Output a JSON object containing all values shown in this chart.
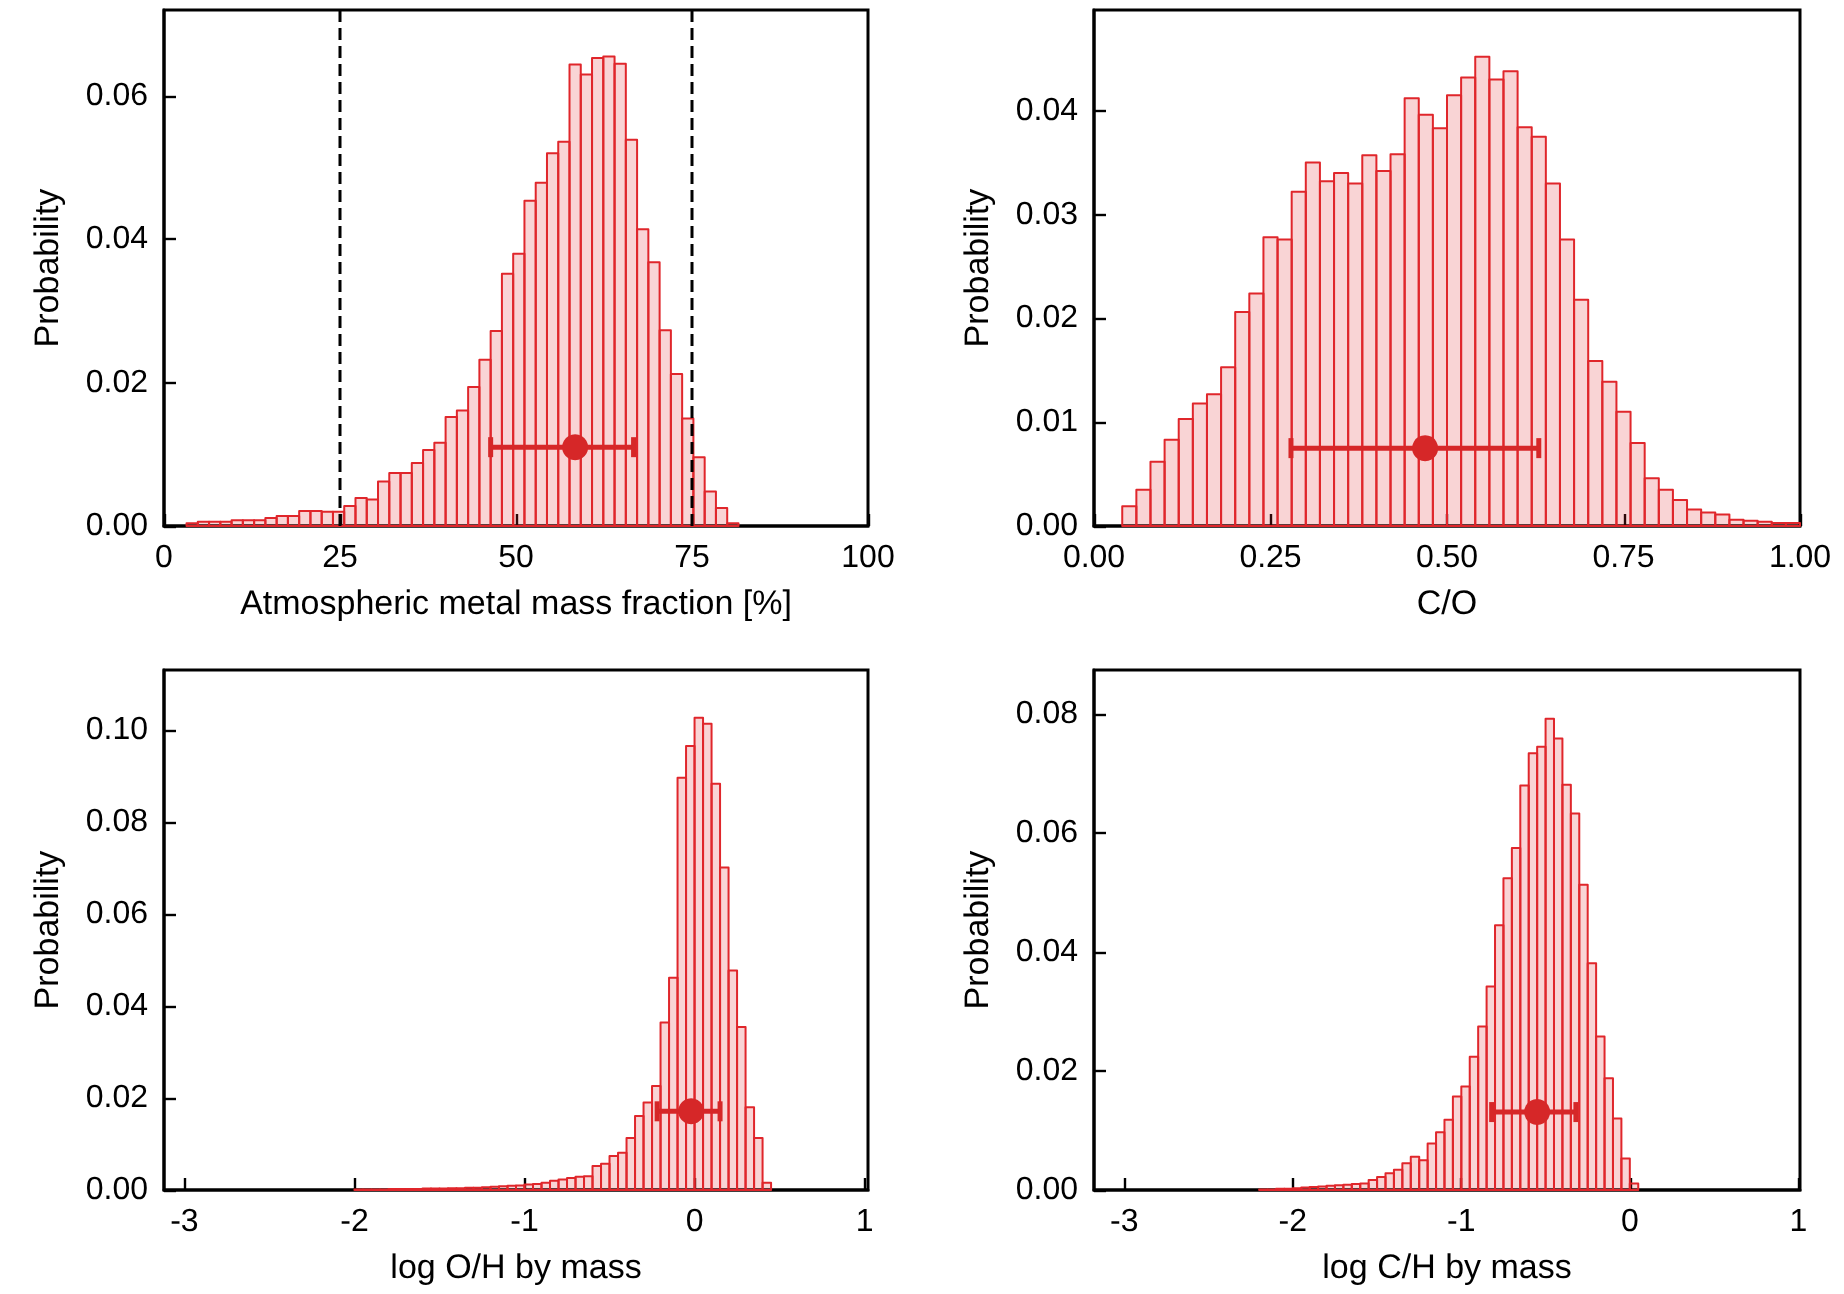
{
  "chart_data": [
    {
      "type": "histogram",
      "xlabel": "Atmospheric metal mass fraction [%]",
      "ylabel": "Probability",
      "xlim": [
        0,
        100
      ],
      "xticks": [
        0,
        25,
        50,
        75,
        100
      ],
      "ylim": [
        0,
        0.072
      ],
      "yticks": [
        {
          "value": 0,
          "label": "0.00"
        },
        {
          "value": 0.02,
          "label": "0.02"
        },
        {
          "value": 0.04,
          "label": "0.04"
        },
        {
          "value": 0.06,
          "label": "0.06"
        }
      ],
      "marker": "circle",
      "ref_lines": [
        {
          "axis": "x",
          "value": 25,
          "color": "#000000",
          "line_style": "dashed"
        },
        {
          "axis": "x",
          "value": 75,
          "color": "#000000",
          "line_style": "dashed"
        }
      ],
      "series": [
        {
          "type": "histogram",
          "color": "#e0262b",
          "bins": [
            3.2,
            4.8,
            6.4,
            8.0,
            9.6,
            11.2,
            12.8,
            14.4,
            16.0,
            17.6,
            19.2,
            20.8,
            22.4,
            24.0,
            25.6,
            27.2,
            28.8,
            30.4,
            32.0,
            33.6,
            35.2,
            36.8,
            38.4,
            40.0,
            41.6,
            43.2,
            44.8,
            46.4,
            48.0,
            49.6,
            51.2,
            52.8,
            54.4,
            56.0,
            57.6,
            59.2,
            60.8,
            62.4,
            64.0,
            65.6,
            67.2,
            68.8,
            70.4,
            72.0,
            73.6,
            75.2,
            76.8,
            78.4,
            80.0,
            81.6
          ],
          "values": [
            0.0004,
            0.0006,
            0.0006,
            0.0006,
            0.0008,
            0.0008,
            0.0008,
            0.0011,
            0.0014,
            0.0014,
            0.0021,
            0.0021,
            0.002,
            0.002,
            0.0028,
            0.0039,
            0.0037,
            0.0062,
            0.0074,
            0.0074,
            0.0088,
            0.0106,
            0.0116,
            0.0152,
            0.0161,
            0.0194,
            0.0232,
            0.0272,
            0.0352,
            0.038,
            0.0454,
            0.0479,
            0.052,
            0.0536,
            0.0644,
            0.063,
            0.0653,
            0.0655,
            0.0645,
            0.0539,
            0.0414,
            0.0368,
            0.0273,
            0.0212,
            0.015,
            0.0096,
            0.0048,
            0.0025,
            0.0004
          ]
        },
        {
          "type": "scatter",
          "color": "#d62728",
          "x": [
            58.4
          ],
          "values": [
            0.011
          ],
          "xerrors": [
            [
              46.4,
              66.7
            ]
          ]
        }
      ]
    },
    {
      "type": "histogram",
      "xlabel": "C/O",
      "ylabel": "Probability",
      "xlim": [
        0,
        1
      ],
      "xticks": [
        {
          "value": 0,
          "label": "0.00"
        },
        {
          "value": 0.25,
          "label": "0.25"
        },
        {
          "value": 0.5,
          "label": "0.50"
        },
        {
          "value": 0.75,
          "label": "0.75"
        },
        {
          "value": 1,
          "label": "1.00"
        }
      ],
      "ylim": [
        0,
        0.0497
      ],
      "yticks": [
        {
          "value": 0,
          "label": "0.00"
        },
        {
          "value": 0.01,
          "label": "0.01"
        },
        {
          "value": 0.02,
          "label": "0.02"
        },
        {
          "value": 0.03,
          "label": "0.03"
        },
        {
          "value": 0.04,
          "label": "0.04"
        }
      ],
      "marker": "circle",
      "series": [
        {
          "type": "histogram",
          "color": "#e0262b",
          "bins": [
            0.04,
            0.06,
            0.08,
            0.1,
            0.12,
            0.14,
            0.16,
            0.18,
            0.2,
            0.22,
            0.24,
            0.26,
            0.28,
            0.3,
            0.32,
            0.34,
            0.36,
            0.38,
            0.4,
            0.42,
            0.44,
            0.46,
            0.48,
            0.5,
            0.52,
            0.54,
            0.56,
            0.58,
            0.6,
            0.62,
            0.64,
            0.66,
            0.68,
            0.7,
            0.72,
            0.74,
            0.76,
            0.78,
            0.8,
            0.82,
            0.84,
            0.86,
            0.88,
            0.9,
            0.92,
            0.94,
            0.96,
            0.98,
            1.0
          ],
          "values": [
            0.0019,
            0.0035,
            0.0062,
            0.0083,
            0.0103,
            0.0118,
            0.0127,
            0.0153,
            0.0206,
            0.0224,
            0.0278,
            0.0276,
            0.0322,
            0.035,
            0.0332,
            0.034,
            0.033,
            0.0357,
            0.0342,
            0.0358,
            0.0412,
            0.0396,
            0.0383,
            0.0415,
            0.0432,
            0.0452,
            0.043,
            0.0438,
            0.0384,
            0.0375,
            0.033,
            0.0276,
            0.0218,
            0.0159,
            0.0139,
            0.011,
            0.008,
            0.0046,
            0.0035,
            0.0025,
            0.0016,
            0.0013,
            0.0011,
            0.0006,
            0.0005,
            0.0004,
            0.0003,
            0.0003
          ]
        },
        {
          "type": "scatter",
          "color": "#d62728",
          "x": [
            0.469
          ],
          "values": [
            0.0075
          ],
          "xerrors": [
            [
              0.279,
              0.63
            ]
          ]
        }
      ]
    },
    {
      "type": "histogram",
      "xlabel": "log O/H by mass",
      "ylabel": "Probability",
      "xlim": [
        -3.12,
        1.02
      ],
      "xticks": [
        -3,
        -2,
        -1,
        0,
        1
      ],
      "ylim": [
        0,
        0.113
      ],
      "yticks": [
        {
          "value": 0,
          "label": "0.00"
        },
        {
          "value": 0.02,
          "label": "0.02"
        },
        {
          "value": 0.04,
          "label": "0.04"
        },
        {
          "value": 0.06,
          "label": "0.06"
        },
        {
          "value": 0.08,
          "label": "0.08"
        },
        {
          "value": 0.1,
          "label": "0.10"
        }
      ],
      "marker": "circle",
      "series": [
        {
          "type": "histogram",
          "color": "#e0262b",
          "bins": [
            -2.0,
            -1.95,
            -1.9,
            -1.85,
            -1.8,
            -1.75,
            -1.7,
            -1.65,
            -1.6,
            -1.55,
            -1.5,
            -1.45,
            -1.4,
            -1.35,
            -1.3,
            -1.25,
            -1.2,
            -1.15,
            -1.1,
            -1.05,
            -1.0,
            -0.95,
            -0.9,
            -0.85,
            -0.8,
            -0.75,
            -0.7,
            -0.65,
            -0.6,
            -0.55,
            -0.5,
            -0.45,
            -0.4,
            -0.35,
            -0.3,
            -0.25,
            -0.2,
            -0.15,
            -0.1,
            -0.05,
            0.0,
            0.05,
            0.1,
            0.15,
            0.2,
            0.25,
            0.3,
            0.35,
            0.4,
            0.45
          ],
          "values": [
            0.0001,
            0.0001,
            0.0001,
            0.0001,
            0.0002,
            0.0002,
            0.0002,
            0.0002,
            0.0003,
            0.0003,
            0.0003,
            0.0004,
            0.0004,
            0.0005,
            0.0005,
            0.0006,
            0.0007,
            0.0008,
            0.0009,
            0.001,
            0.0012,
            0.0013,
            0.0016,
            0.002,
            0.0023,
            0.0026,
            0.0029,
            0.003,
            0.0052,
            0.0057,
            0.0074,
            0.0081,
            0.0113,
            0.0161,
            0.019,
            0.0226,
            0.0364,
            0.0461,
            0.0896,
            0.0965,
            0.1026,
            0.1013,
            0.0883,
            0.0701,
            0.0477,
            0.0354,
            0.018,
            0.0113,
            0.0016
          ]
        },
        {
          "type": "scatter",
          "color": "#d62728",
          "x": [
            -0.02
          ],
          "values": [
            0.0171
          ],
          "xerrors": [
            [
              -0.22,
              0.15
            ]
          ]
        }
      ]
    },
    {
      "type": "histogram",
      "xlabel": "log C/H by mass",
      "ylabel": "Probability",
      "xlim": [
        -3.18,
        1.01
      ],
      "xticks": [
        -3,
        -2,
        -1,
        0,
        1
      ],
      "ylim": [
        0,
        0.0874
      ],
      "yticks": [
        {
          "value": 0,
          "label": "0.00"
        },
        {
          "value": 0.02,
          "label": "0.02"
        },
        {
          "value": 0.04,
          "label": "0.04"
        },
        {
          "value": 0.06,
          "label": "0.06"
        },
        {
          "value": 0.08,
          "label": "0.08"
        }
      ],
      "marker": "circle",
      "series": [
        {
          "type": "histogram",
          "color": "#e0262b",
          "bins": [
            -2.2,
            -2.15,
            -2.1,
            -2.05,
            -2.0,
            -1.95,
            -1.9,
            -1.85,
            -1.8,
            -1.75,
            -1.7,
            -1.65,
            -1.6,
            -1.55,
            -1.5,
            -1.45,
            -1.4,
            -1.35,
            -1.3,
            -1.25,
            -1.2,
            -1.15,
            -1.1,
            -1.05,
            -1.0,
            -0.95,
            -0.9,
            -0.85,
            -0.8,
            -0.75,
            -0.7,
            -0.65,
            -0.6,
            -0.55,
            -0.5,
            -0.45,
            -0.4,
            -0.35,
            -0.3,
            -0.25,
            -0.2,
            -0.15,
            -0.1,
            -0.05,
            0.0,
            0.05
          ],
          "values": [
            0.0001,
            0.0001,
            0.0002,
            0.0002,
            0.0003,
            0.0004,
            0.0005,
            0.0006,
            0.0007,
            0.0008,
            0.0009,
            0.001,
            0.0011,
            0.0017,
            0.0022,
            0.0028,
            0.0034,
            0.0045,
            0.0056,
            0.005,
            0.0078,
            0.0097,
            0.0118,
            0.0157,
            0.0174,
            0.0224,
            0.0275,
            0.0342,
            0.0445,
            0.0524,
            0.0575,
            0.068,
            0.0734,
            0.0745,
            0.0792,
            0.0759,
            0.0681,
            0.0633,
            0.0513,
            0.0381,
            0.0258,
            0.0188,
            0.012,
            0.0053,
            0.0011
          ]
        },
        {
          "type": "scatter",
          "color": "#d62728",
          "x": [
            -0.55
          ],
          "values": [
            0.0131
          ],
          "xerrors": [
            [
              -0.82,
              -0.32
            ]
          ]
        }
      ]
    }
  ]
}
